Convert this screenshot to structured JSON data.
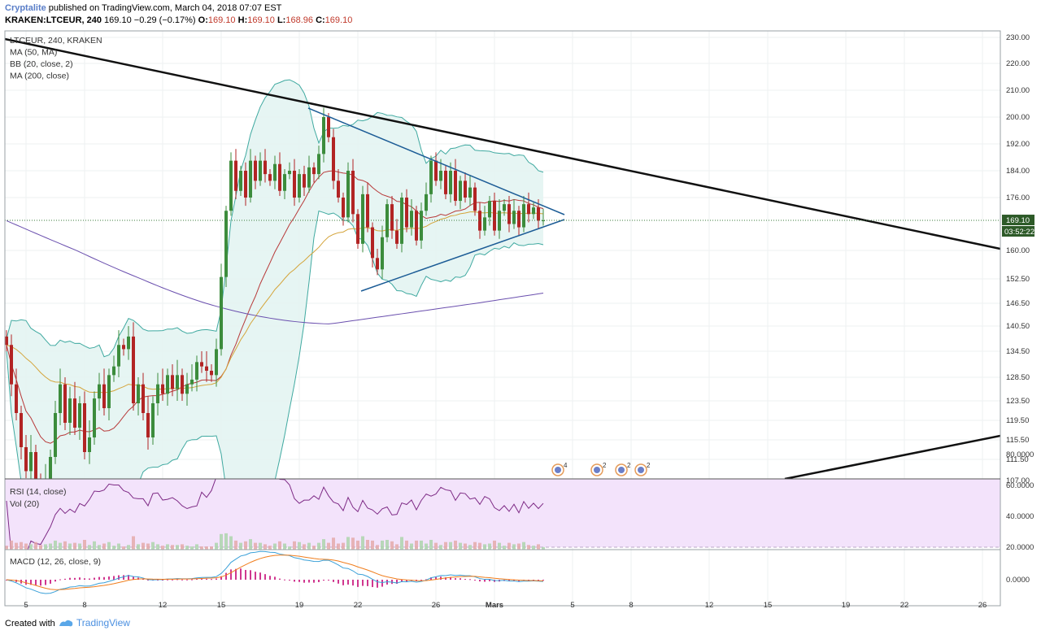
{
  "header": {
    "author": "Cryptalite",
    "published_text": " published on TradingView.com, March 04, 2018 07:07 EST",
    "symbol": "KRAKEN:LTCEUR, 240",
    "last": "169.10",
    "change": "−0.29 (−0.17%)",
    "o_label": "O:",
    "o_value": "169.10",
    "h_label": "H:",
    "h_value": "169.10",
    "l_label": "L:",
    "l_value": "168.96",
    "c_label": "C:",
    "c_value": "169.10"
  },
  "footer": {
    "created_with": "Created with",
    "brand": "TradingView"
  },
  "colors": {
    "up": "#3c8c3c",
    "down": "#b22424",
    "bb_band": "#3fa9a0",
    "bb_fill": "#e3f4f2",
    "bb_mid": "#b83a3a",
    "ma50": "#d4a43a",
    "ma200": "#6a4fae",
    "rsi": "#7e2b86",
    "rsi_bg": "#f3e3fb",
    "macd": "#3aa0d8",
    "signal": "#f07e1e",
    "hist": "#d0378f",
    "trend": "#111111",
    "tri": "#1c5c96",
    "price_tag": "#2d5a28"
  },
  "chart_data": [
    {
      "type": "candlestick",
      "legend": [
        "LTCEUR, 240, KRAKEN",
        "MA (50, MA)",
        "BB (20, close, 2)",
        "MA (200, close)"
      ],
      "y_ticks": [
        "230.00",
        "220.00",
        "210.00",
        "200.00",
        "192.00",
        "184.00",
        "176.00",
        "160.00",
        "152.50",
        "146.50",
        "140.50",
        "134.50",
        "128.50",
        "123.50",
        "119.50",
        "115.50",
        "111.50",
        "107.00"
      ],
      "y_tick_values": [
        230,
        220,
        210,
        200,
        192,
        184,
        176,
        160,
        152.5,
        146.5,
        140.5,
        134.5,
        128.5,
        123.5,
        119.5,
        115.5,
        111.5,
        107
      ],
      "price_label": "169.10",
      "timer_label": "03:52:22",
      "last_price": 169.1,
      "x_ticks": [
        "5",
        "8",
        "12",
        "15",
        "19",
        "22",
        "26",
        "Mars",
        "5",
        "8",
        "12",
        "15",
        "19",
        "22",
        "26"
      ],
      "x_tick_index": [
        4,
        16,
        32,
        44,
        60,
        72,
        88,
        100,
        116,
        128,
        144,
        156,
        172,
        184,
        200
      ],
      "closes": [
        136,
        127,
        121,
        114,
        109,
        113,
        106,
        103,
        107,
        112,
        121,
        127,
        119,
        124,
        118,
        123,
        113,
        116,
        124,
        127,
        122,
        129,
        131,
        136,
        135,
        138,
        123,
        127,
        121,
        116,
        123,
        127,
        125,
        129,
        126,
        129,
        125,
        127,
        128,
        132,
        131,
        130,
        129,
        135,
        153,
        172,
        187,
        178,
        184,
        176,
        187,
        181,
        187,
        183,
        181,
        186,
        178,
        183,
        184,
        176,
        183,
        179,
        185,
        183,
        189,
        200,
        194,
        181,
        176,
        170,
        184,
        171,
        162,
        177,
        167,
        158,
        155,
        164,
        174,
        166,
        162,
        176,
        167,
        172,
        163,
        172,
        177,
        187,
        181,
        184,
        177,
        184,
        175,
        181,
        176,
        179,
        172,
        166,
        170,
        175,
        166,
        172,
        174,
        168,
        172,
        167,
        174,
        171,
        173,
        169,
        169.1
      ],
      "ma50": [
        null,
        null,
        null,
        null,
        null,
        null,
        null,
        null,
        null,
        null,
        null,
        null,
        null,
        null,
        null,
        null,
        null,
        null,
        null,
        null,
        null,
        null,
        null,
        null,
        null,
        null,
        null,
        null,
        null,
        null,
        null,
        null,
        null,
        null,
        null,
        null,
        null,
        null,
        null,
        null,
        null,
        null,
        null,
        null,
        null,
        null,
        null,
        null,
        null,
        null,
        null,
        null,
        null,
        null,
        null,
        null,
        null,
        null,
        null,
        null,
        null,
        null,
        null,
        null,
        null,
        null,
        null,
        null,
        null,
        null,
        null,
        null,
        null,
        null,
        null,
        null,
        null,
        null,
        null,
        null,
        null,
        null,
        null,
        null,
        null,
        null,
        null,
        null,
        null,
        null,
        null,
        null,
        null,
        null,
        null,
        null,
        null,
        null,
        null,
        null,
        null,
        null,
        null,
        null,
        null,
        null,
        null,
        null,
        null,
        null,
        null
      ],
      "ma200": [
        null
      ]
    },
    {
      "type": "line",
      "name": "RSI (14, close)",
      "legend": [
        "RSI (14, close)",
        "Vol (20)"
      ],
      "y_ticks": [
        "80.0000",
        "60.0000",
        "40.0000",
        "20.0000"
      ],
      "y_tick_values": [
        80,
        60,
        40,
        20
      ]
    },
    {
      "type": "line",
      "name": "MACD (12, 26, close, 9)",
      "legend": [
        "MACD (12, 26, close, 9)"
      ],
      "y_ticks": [
        "0.0000"
      ],
      "y_tick_values": [
        0
      ]
    }
  ],
  "events": [
    {
      "index": 114,
      "count": "4"
    },
    {
      "index": 122,
      "count": "2"
    },
    {
      "index": 127,
      "count": "2"
    },
    {
      "index": 131,
      "count": "2"
    }
  ]
}
